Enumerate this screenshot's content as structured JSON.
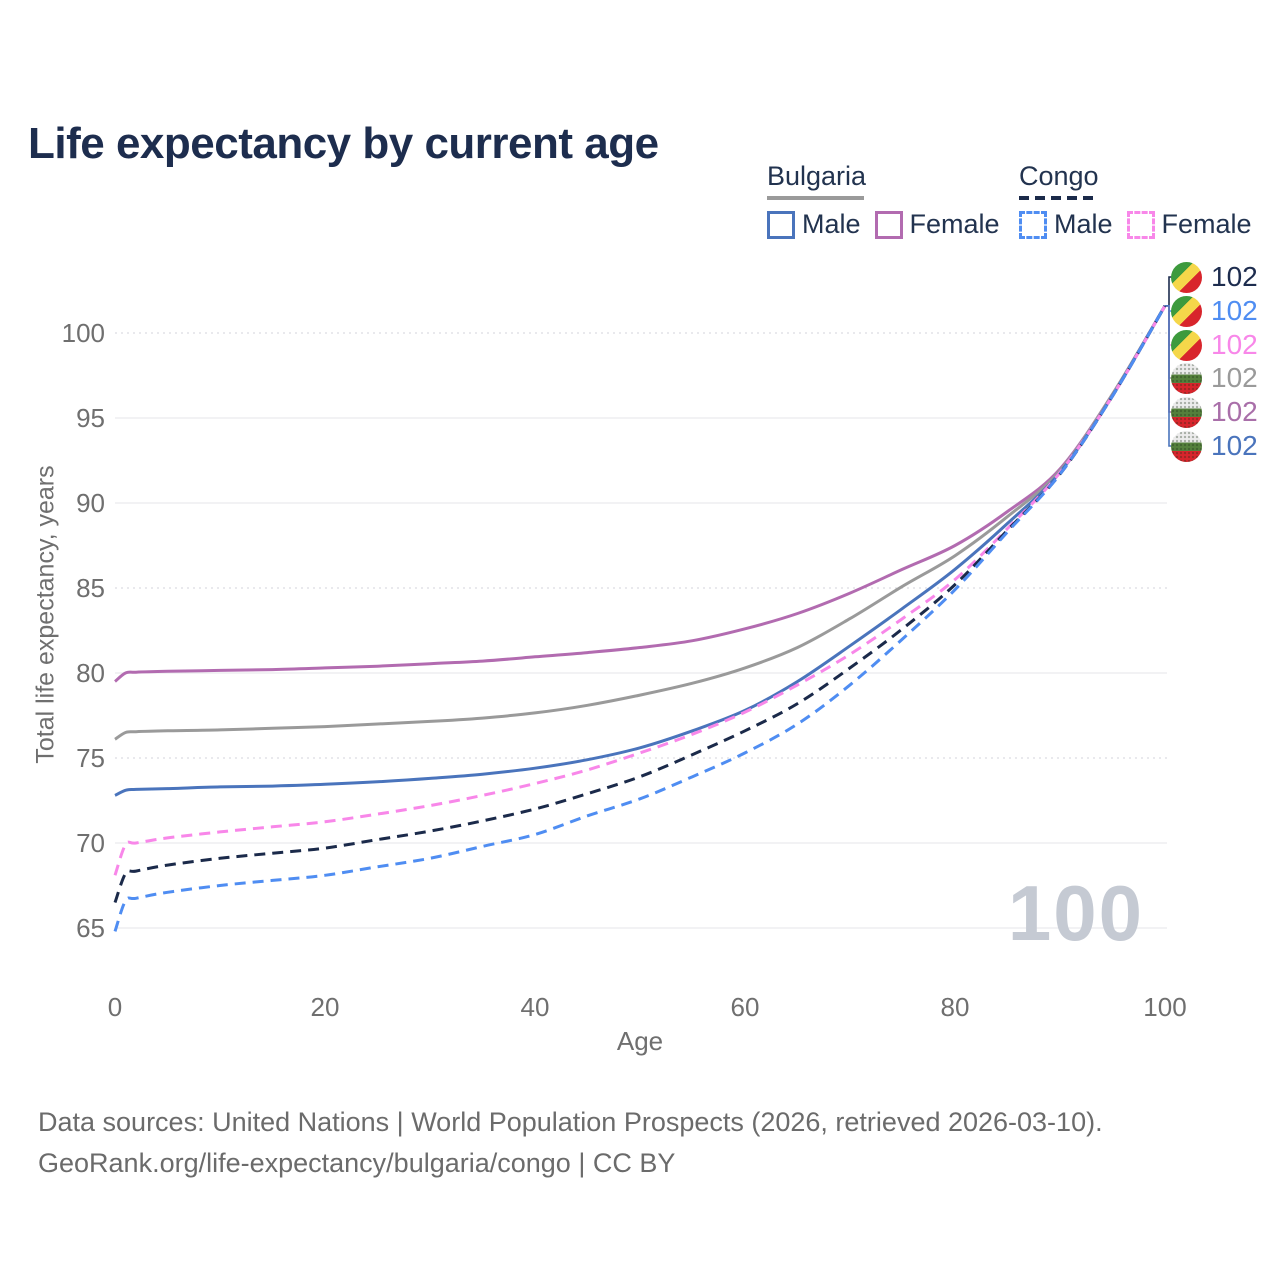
{
  "header": {
    "title": "Life expectancy by current age"
  },
  "legend": {
    "groups": [
      {
        "country": "Bulgaria",
        "underline_style": "solid",
        "underline_color": "#9a9a9a",
        "items": [
          {
            "label": "Male",
            "box_color": "#4a74bc",
            "box_style": "solid"
          },
          {
            "label": "Female",
            "box_color": "#b26bb0",
            "box_style": "solid"
          }
        ]
      },
      {
        "country": "Congo",
        "underline_style": "dashed",
        "underline_color": "#1b2a4a",
        "items": [
          {
            "label": "Male",
            "box_color": "#4f8df2",
            "box_style": "dashed"
          },
          {
            "label": "Female",
            "box_color": "#f887e9",
            "box_style": "dashed"
          }
        ]
      }
    ]
  },
  "chart_data": {
    "type": "line",
    "title": "Life expectancy by current age",
    "xlabel": "Age",
    "ylabel": "Total life expectancy, years",
    "xlim": [
      0,
      100
    ],
    "ylim": [
      64,
      103
    ],
    "x_ticks": [
      0,
      20,
      40,
      60,
      80,
      100
    ],
    "y_ticks": [
      65,
      70,
      75,
      80,
      85,
      90,
      95,
      100
    ],
    "dotted_y_ticks": [
      75,
      85,
      100
    ],
    "grid": true,
    "legend_position": "top-right",
    "watermark": "100",
    "x": [
      0,
      1,
      2,
      5,
      10,
      15,
      20,
      25,
      30,
      35,
      40,
      45,
      50,
      55,
      60,
      65,
      70,
      75,
      80,
      85,
      90,
      95,
      100
    ],
    "series": [
      {
        "name": "Bulgaria Female",
        "country": "Bulgaria",
        "sex": "Female",
        "style": "solid",
        "color": "#b26bb0",
        "values": [
          79.5,
          80.0,
          80.05,
          80.1,
          80.15,
          80.2,
          80.3,
          80.4,
          80.55,
          80.7,
          80.95,
          81.2,
          81.5,
          81.9,
          82.6,
          83.5,
          84.7,
          86.1,
          87.5,
          89.5,
          92.0,
          96.4,
          101.6
        ]
      },
      {
        "name": "Bulgaria",
        "country": "Bulgaria",
        "sex": "All",
        "style": "solid",
        "color": "#9a9a9a",
        "values": [
          76.1,
          76.5,
          76.55,
          76.6,
          76.65,
          76.75,
          76.85,
          77.0,
          77.15,
          77.35,
          77.65,
          78.1,
          78.7,
          79.4,
          80.3,
          81.5,
          83.2,
          85.1,
          86.9,
          89.2,
          91.9,
          96.4,
          101.6
        ]
      },
      {
        "name": "Bulgaria Male",
        "country": "Bulgaria",
        "sex": "Male",
        "style": "solid",
        "color": "#4a74bc",
        "values": [
          72.8,
          73.1,
          73.15,
          73.2,
          73.3,
          73.35,
          73.45,
          73.6,
          73.8,
          74.05,
          74.4,
          74.9,
          75.6,
          76.6,
          77.8,
          79.5,
          81.6,
          83.8,
          86.1,
          88.8,
          91.8,
          96.3,
          101.6
        ]
      },
      {
        "name": "Congo Female",
        "country": "Congo",
        "sex": "Female",
        "style": "dashed",
        "color": "#f887e9",
        "values": [
          68.1,
          69.9,
          70.0,
          70.3,
          70.65,
          70.95,
          71.25,
          71.7,
          72.2,
          72.8,
          73.5,
          74.3,
          75.3,
          76.4,
          77.7,
          79.3,
          81.1,
          83.2,
          85.5,
          88.5,
          91.8,
          96.3,
          101.6
        ]
      },
      {
        "name": "Congo",
        "country": "Congo",
        "sex": "All",
        "style": "dashed",
        "color": "#1b2a4a",
        "values": [
          66.5,
          68.2,
          68.35,
          68.7,
          69.1,
          69.4,
          69.7,
          70.2,
          70.7,
          71.3,
          72.0,
          72.9,
          73.9,
          75.2,
          76.6,
          78.2,
          80.3,
          82.6,
          85.2,
          88.4,
          91.7,
          96.3,
          101.6
        ]
      },
      {
        "name": "Congo Male",
        "country": "Congo",
        "sex": "Male",
        "style": "dashed",
        "color": "#4f8df2",
        "values": [
          64.8,
          66.6,
          66.75,
          67.1,
          67.5,
          67.8,
          68.1,
          68.6,
          69.1,
          69.8,
          70.5,
          71.6,
          72.6,
          73.9,
          75.3,
          77.0,
          79.3,
          82.0,
          84.9,
          88.3,
          91.7,
          96.3,
          101.6
        ]
      }
    ],
    "end_labels": [
      {
        "series": "Congo",
        "flag": "congo",
        "value": "102",
        "color": "#1d2c4e"
      },
      {
        "series": "Congo Male",
        "flag": "congo",
        "value": "102",
        "color": "#4f8df2"
      },
      {
        "series": "Congo Female",
        "flag": "congo",
        "value": "102",
        "color": "#f887e9"
      },
      {
        "series": "Bulgaria",
        "flag": "bulgaria",
        "value": "102",
        "color": "#9a9a9a"
      },
      {
        "series": "Bulgaria Female",
        "flag": "bulgaria",
        "value": "102",
        "color": "#a96fa9"
      },
      {
        "series": "Bulgaria Male",
        "flag": "bulgaria",
        "value": "102",
        "color": "#4a74bc"
      }
    ]
  },
  "footer": {
    "line1": "Data sources: United Nations | World Population Prospects (2026, retrieved 2026-03-10).",
    "line2": "GeoRank.org/life-expectancy/bulgaria/congo | CC BY"
  }
}
